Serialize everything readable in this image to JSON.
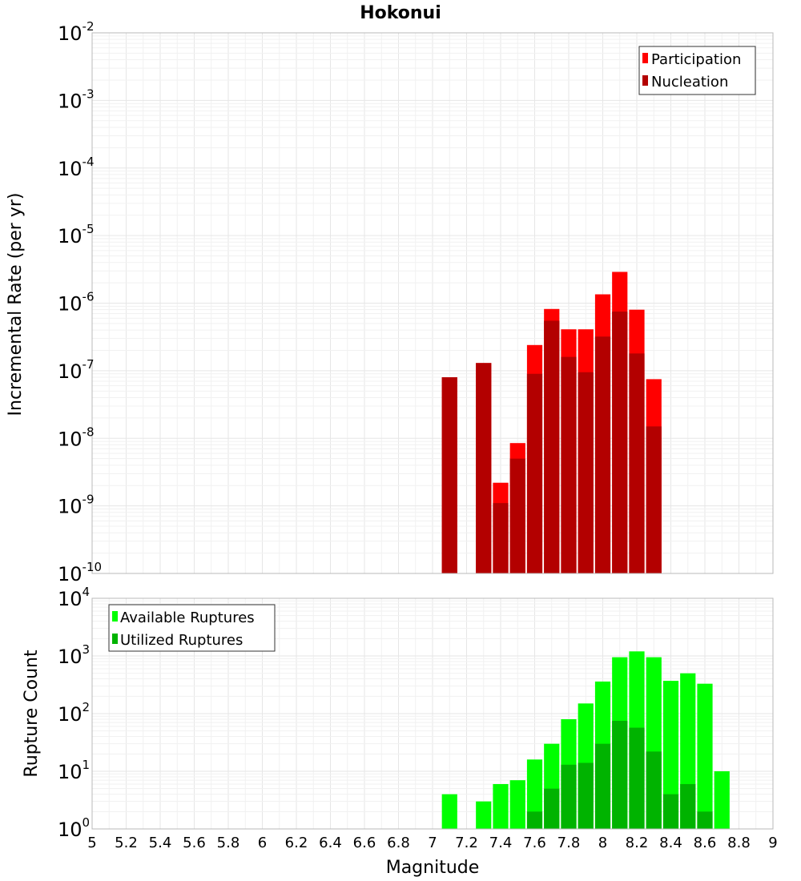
{
  "chart_data": [
    {
      "type": "bar",
      "title": "Hokonui",
      "xlabel": "",
      "ylabel": "Incremental Rate (per yr)",
      "yscale": "log",
      "ylim_exp": [
        -10,
        -2
      ],
      "xlim": [
        5,
        9
      ],
      "grid": true,
      "legend_placement": "top-right",
      "x": [
        7.1,
        7.3,
        7.4,
        7.5,
        7.6,
        7.7,
        7.8,
        7.9,
        8.0,
        8.1,
        8.2,
        8.3
      ],
      "series": [
        {
          "name": "Participation",
          "color": "#ff0000",
          "values": [
            8e-08,
            1.3e-07,
            2.2e-09,
            8.5e-09,
            2.4e-07,
            8.2e-07,
            4.1e-07,
            4.1e-07,
            1.35e-06,
            2.9e-06,
            8e-07,
            7.5e-08
          ]
        },
        {
          "name": "Nucleation",
          "color": "#b30000",
          "values": [
            8e-08,
            1.3e-07,
            1.1e-09,
            5e-09,
            9e-08,
            5.5e-07,
            1.6e-07,
            9.5e-08,
            3.2e-07,
            7.5e-07,
            1.8e-07,
            1.5e-08
          ]
        }
      ]
    },
    {
      "type": "bar",
      "xlabel": "Magnitude",
      "ylabel": "Rupture Count",
      "yscale": "log",
      "ylim_exp": [
        0,
        4
      ],
      "xlim": [
        5,
        9
      ],
      "grid": true,
      "legend_placement": "top-left",
      "x_ticks": [
        "5",
        "5.2",
        "5.4",
        "5.6",
        "5.8",
        "6",
        "6.2",
        "6.4",
        "6.6",
        "6.8",
        "7",
        "7.2",
        "7.4",
        "7.6",
        "7.8",
        "8",
        "8.2",
        "8.4",
        "8.6",
        "8.8",
        "9"
      ],
      "x": [
        7.1,
        7.3,
        7.4,
        7.5,
        7.6,
        7.7,
        7.8,
        7.9,
        8.0,
        8.1,
        8.2,
        8.3,
        8.4,
        8.5,
        8.6,
        8.7
      ],
      "series": [
        {
          "name": "Available Ruptures",
          "color": "#00ff00",
          "values": [
            4,
            3,
            6,
            7,
            16,
            30,
            80,
            150,
            360,
            950,
            1200,
            950,
            370,
            500,
            330,
            10
          ]
        },
        {
          "name": "Utilized Ruptures",
          "color": "#00b300",
          "values": [
            1,
            1,
            1,
            1,
            2,
            5,
            13,
            14,
            30,
            75,
            57,
            22,
            4,
            6,
            2,
            0
          ]
        }
      ]
    }
  ]
}
